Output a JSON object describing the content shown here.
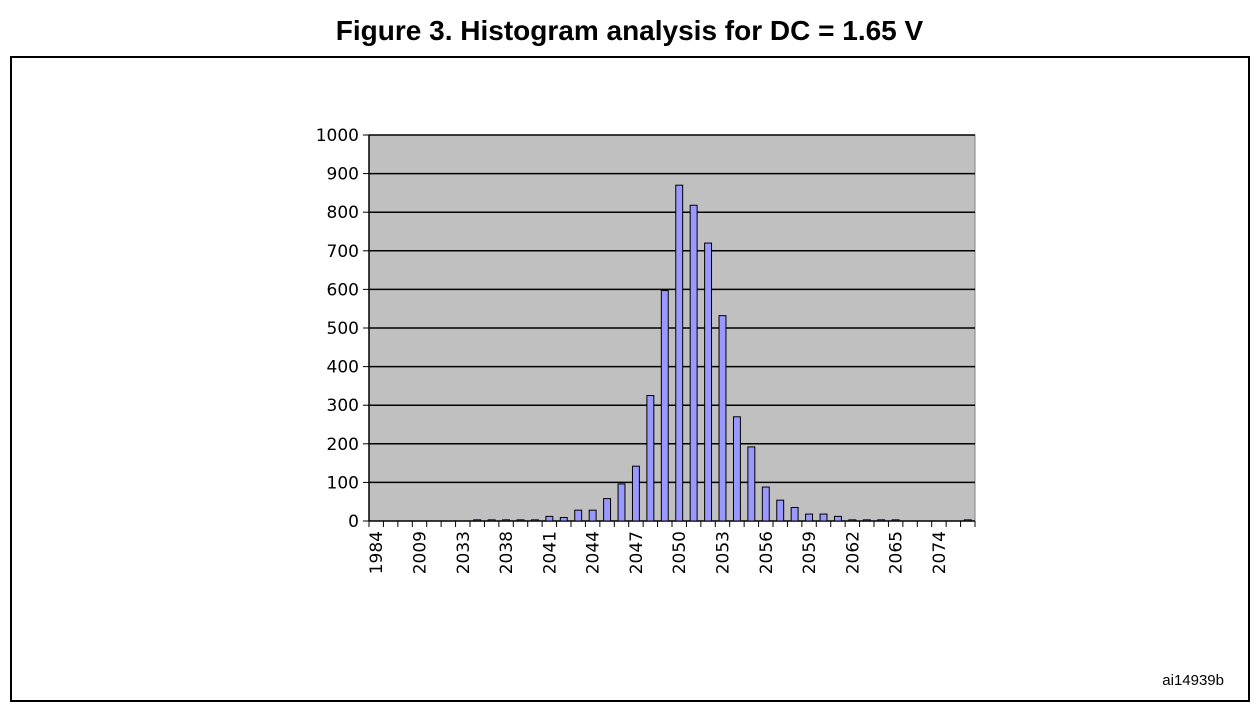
{
  "figure": {
    "title": "Figure 3. Histogram analysis for DC = 1.65 V",
    "code": "ai14939b"
  },
  "chart_data": {
    "type": "bar",
    "title": "",
    "xlabel": "",
    "ylabel": "",
    "ylim": [
      0,
      1000
    ],
    "yticks": [
      0,
      100,
      200,
      300,
      400,
      500,
      600,
      700,
      800,
      900,
      1000
    ],
    "grid": true,
    "legend": "none",
    "colors": {
      "bar_fill": "#9999ff",
      "bar_stroke": "#000000",
      "plot_bg": "#c0c0c0",
      "grid": "#000000"
    },
    "x_tick_labels": [
      "1984",
      "2009",
      "2033",
      "2038",
      "2041",
      "2044",
      "2047",
      "2050",
      "2053",
      "2056",
      "2059",
      "2062",
      "2065",
      "2074"
    ],
    "values": [
      0,
      0,
      0,
      0,
      0,
      0,
      0,
      3,
      3,
      3,
      3,
      3,
      12,
      9,
      28,
      28,
      58,
      96,
      142,
      325,
      597,
      870,
      818,
      720,
      532,
      270,
      192,
      88,
      54,
      35,
      18,
      18,
      12,
      3,
      3,
      3,
      3,
      0,
      0,
      0,
      0,
      3
    ]
  }
}
